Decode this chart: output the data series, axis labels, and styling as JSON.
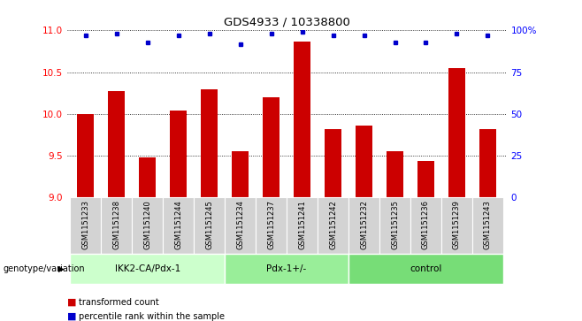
{
  "title": "GDS4933 / 10338800",
  "samples": [
    "GSM1151233",
    "GSM1151238",
    "GSM1151240",
    "GSM1151244",
    "GSM1151245",
    "GSM1151234",
    "GSM1151237",
    "GSM1151241",
    "GSM1151242",
    "GSM1151232",
    "GSM1151235",
    "GSM1151236",
    "GSM1151239",
    "GSM1151243"
  ],
  "red_values": [
    10.0,
    10.27,
    9.48,
    10.04,
    10.3,
    9.55,
    10.2,
    10.87,
    9.82,
    9.86,
    9.55,
    9.44,
    10.55,
    9.82
  ],
  "blue_values": [
    97,
    98,
    93,
    97,
    98,
    92,
    98,
    99,
    97,
    97,
    93,
    93,
    98,
    97
  ],
  "groups": [
    {
      "label": "IKK2-CA/Pdx-1",
      "start": 0,
      "end": 5,
      "color": "#ccffcc"
    },
    {
      "label": "Pdx-1+/-",
      "start": 5,
      "end": 9,
      "color": "#99ee99"
    },
    {
      "label": "control",
      "start": 9,
      "end": 14,
      "color": "#77dd77"
    }
  ],
  "ylim_left": [
    9,
    11
  ],
  "ylim_right": [
    0,
    100
  ],
  "yticks_left": [
    9,
    9.5,
    10,
    10.5,
    11
  ],
  "yticks_right": [
    0,
    25,
    50,
    75,
    100
  ],
  "yticklabels_right": [
    "0",
    "25",
    "50",
    "75",
    "100%"
  ],
  "bar_color": "#cc0000",
  "dot_color": "#0000cc",
  "bar_width": 0.55,
  "xlabel_left": "genotype/variation",
  "legend_red": "transformed count",
  "legend_blue": "percentile rank within the sample",
  "sample_box_color": "#d3d3d3",
  "plot_bg_color": "#ffffff"
}
